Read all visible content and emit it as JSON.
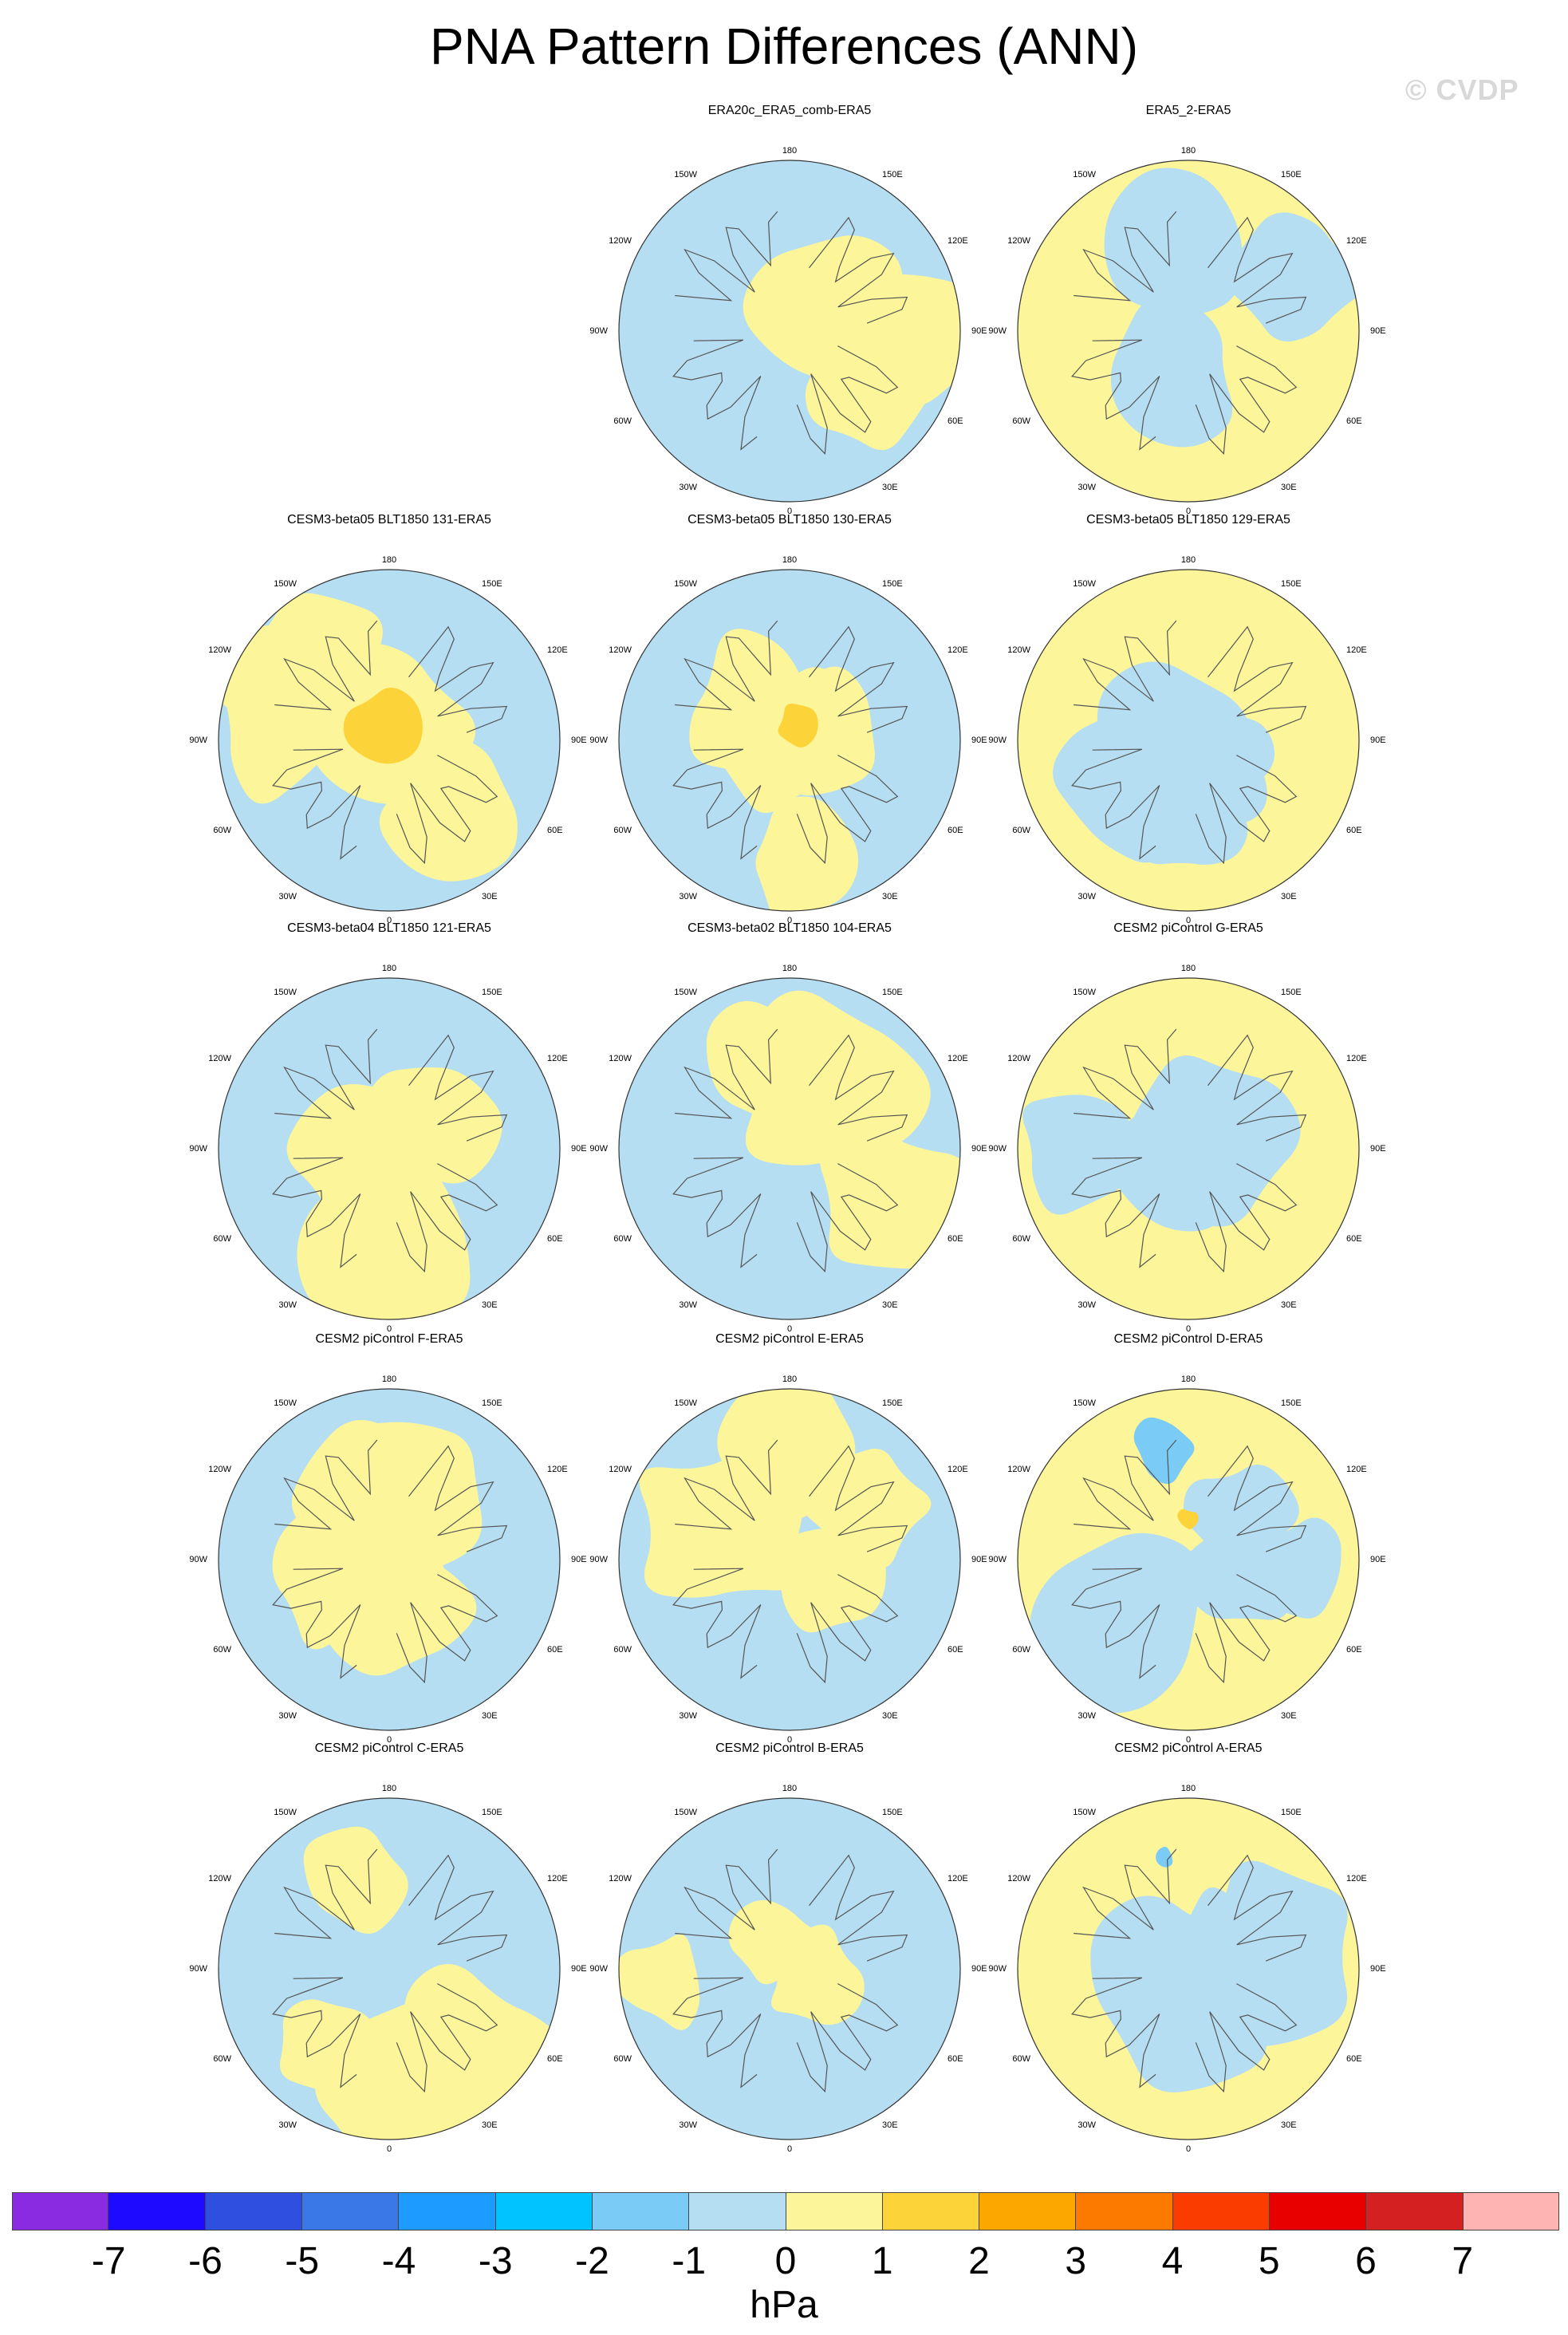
{
  "title": "PNA Pattern Differences (ANN)",
  "watermark": "© CVDP",
  "longitude_labels": {
    "top": "180",
    "bottom": "0",
    "upper_left": "150W",
    "upper_right": "150E",
    "mid_upper_left": "120W",
    "mid_upper_right": "120E",
    "left": "90W",
    "right": "90E",
    "mid_lower_left": "60W",
    "mid_lower_right": "60E",
    "lower_left": "30W",
    "lower_right": "30E"
  },
  "panels": [
    {
      "title": "ERA20c_ERA5_comb-ERA5"
    },
    {
      "title": "ERA5_2-ERA5"
    },
    {
      "title": "CESM3-beta05 BLT1850 131-ERA5"
    },
    {
      "title": "CESM3-beta05 BLT1850 130-ERA5"
    },
    {
      "title": "CESM3-beta05 BLT1850 129-ERA5"
    },
    {
      "title": "CESM3-beta04 BLT1850 121-ERA5"
    },
    {
      "title": "CESM3-beta02 BLT1850 104-ERA5"
    },
    {
      "title": "CESM2 piControl G-ERA5"
    },
    {
      "title": "CESM2 piControl F-ERA5"
    },
    {
      "title": "CESM2 piControl E-ERA5"
    },
    {
      "title": "CESM2 piControl D-ERA5"
    },
    {
      "title": "CESM2 piControl C-ERA5"
    },
    {
      "title": "CESM2 piControl B-ERA5"
    },
    {
      "title": "CESM2 piControl A-ERA5"
    }
  ],
  "colorbar": {
    "units": "hPa",
    "colors": [
      "#8a2be2",
      "#1e0aff",
      "#2e4fe0",
      "#3a78e8",
      "#1e9bff",
      "#00c3ff",
      "#7acbf5",
      "#b5def2",
      "#fcf59a",
      "#fdd33a",
      "#fca600",
      "#fc7a00",
      "#fb3c00",
      "#e80000",
      "#d42020",
      "#ffb4b4"
    ],
    "labels": [
      "-7",
      "-6",
      "-5",
      "-4",
      "-3",
      "-2",
      "-1",
      "0",
      "1",
      "2",
      "3",
      "4",
      "5",
      "6",
      "7"
    ]
  },
  "fill_colors": {
    "negative_light": "#b5def2",
    "negative_mid": "#7acbf5",
    "positive_light": "#fcf59a",
    "positive_mid": "#fdd33a"
  }
}
